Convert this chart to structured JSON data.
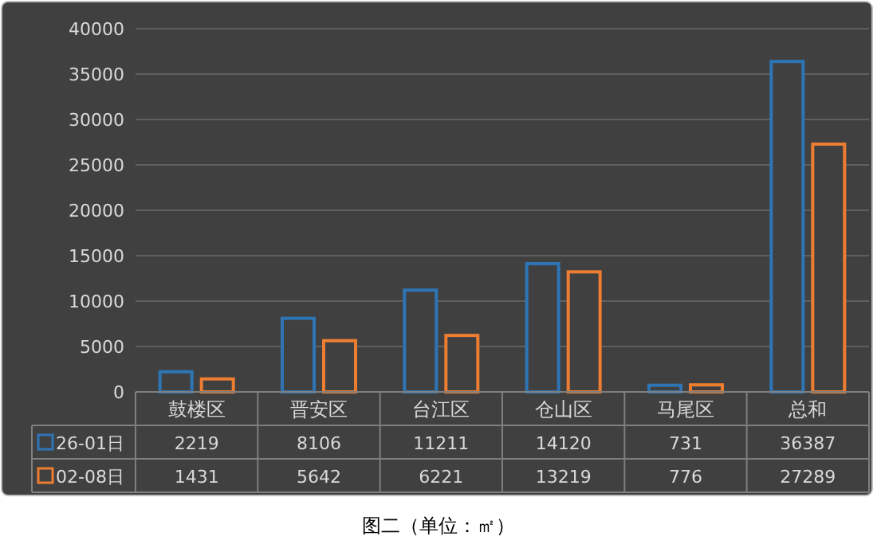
{
  "chart_data": {
    "type": "bar",
    "categories": [
      "鼓楼区",
      "晋安区",
      "台江区",
      "仓山区",
      "马尾区",
      "总和"
    ],
    "series": [
      {
        "name": "26-01日",
        "color": "#2e75b6",
        "values": [
          2219,
          8106,
          11211,
          14120,
          731,
          36387
        ]
      },
      {
        "name": "02-08日",
        "color": "#ed7d31",
        "values": [
          1431,
          5642,
          6221,
          13219,
          776,
          27289
        ]
      }
    ],
    "ylim": [
      0,
      40000
    ],
    "yticks": [
      0,
      5000,
      10000,
      15000,
      20000,
      25000,
      30000,
      35000,
      40000
    ],
    "grid": "y",
    "legend": "bottom left",
    "data_labels": true,
    "annotations": [
      "图二（单位：㎡）"
    ]
  }
}
